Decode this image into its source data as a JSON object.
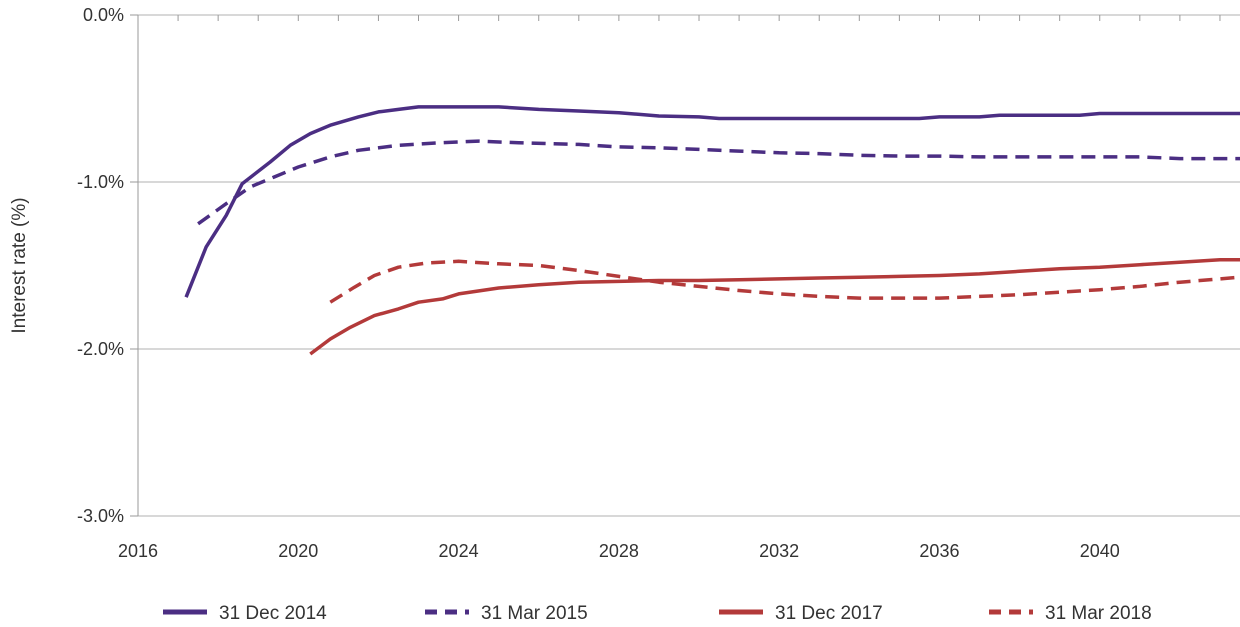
{
  "chart_data": {
    "type": "line",
    "title": "",
    "xlabel": "",
    "ylabel": "Interest rate (%)",
    "xlim": [
      2016,
      2043.5
    ],
    "ylim": [
      -3.0,
      0.0
    ],
    "x_ticks": [
      2016,
      2020,
      2024,
      2028,
      2032,
      2036,
      2040
    ],
    "x_tick_labels": [
      "2016",
      "2020",
      "2024",
      "2028",
      "2032",
      "2036",
      "2040"
    ],
    "y_ticks": [
      0.0,
      -1.0,
      -2.0,
      -3.0
    ],
    "y_tick_labels": [
      "0.0%",
      "-1.0%",
      "-2.0%",
      "-3.0%"
    ],
    "grid": "horizontal",
    "legend_position": "bottom",
    "series": [
      {
        "name": "31 Dec 2014",
        "color": "#4b2e83",
        "dash": "solid",
        "points": [
          [
            2017.2,
            -1.69
          ],
          [
            2017.7,
            -1.39
          ],
          [
            2018.2,
            -1.2
          ],
          [
            2018.6,
            -1.01
          ],
          [
            2019.3,
            -0.88
          ],
          [
            2019.8,
            -0.78
          ],
          [
            2020.3,
            -0.71
          ],
          [
            2020.8,
            -0.66
          ],
          [
            2021.5,
            -0.61
          ],
          [
            2022.0,
            -0.58
          ],
          [
            2022.5,
            -0.565
          ],
          [
            2023.0,
            -0.55
          ],
          [
            2024.0,
            -0.55
          ],
          [
            2025.0,
            -0.55
          ],
          [
            2026.0,
            -0.565
          ],
          [
            2027.0,
            -0.575
          ],
          [
            2028.0,
            -0.585
          ],
          [
            2029.0,
            -0.605
          ],
          [
            2030.0,
            -0.61
          ],
          [
            2030.5,
            -0.62
          ],
          [
            2032.0,
            -0.62
          ],
          [
            2034.0,
            -0.62
          ],
          [
            2035.5,
            -0.62
          ],
          [
            2036.0,
            -0.61
          ],
          [
            2037.0,
            -0.61
          ],
          [
            2037.5,
            -0.6
          ],
          [
            2039.5,
            -0.6
          ],
          [
            2040.0,
            -0.59
          ],
          [
            2043.5,
            -0.59
          ]
        ]
      },
      {
        "name": "31 Mar 2015",
        "color": "#4b2e83",
        "dash": "dashed",
        "points": [
          [
            2017.5,
            -1.25
          ],
          [
            2018.2,
            -1.13
          ],
          [
            2018.8,
            -1.03
          ],
          [
            2019.4,
            -0.97
          ],
          [
            2020.0,
            -0.91
          ],
          [
            2020.8,
            -0.85
          ],
          [
            2021.5,
            -0.81
          ],
          [
            2022.5,
            -0.78
          ],
          [
            2023.5,
            -0.765
          ],
          [
            2024.5,
            -0.755
          ],
          [
            2025.5,
            -0.765
          ],
          [
            2027.0,
            -0.775
          ],
          [
            2028.0,
            -0.79
          ],
          [
            2029.0,
            -0.795
          ],
          [
            2030.0,
            -0.805
          ],
          [
            2031.0,
            -0.815
          ],
          [
            2032.0,
            -0.825
          ],
          [
            2033.0,
            -0.83
          ],
          [
            2034.0,
            -0.84
          ],
          [
            2035.0,
            -0.845
          ],
          [
            2036.0,
            -0.845
          ],
          [
            2037.0,
            -0.85
          ],
          [
            2038.0,
            -0.85
          ],
          [
            2040.0,
            -0.85
          ],
          [
            2041.0,
            -0.85
          ],
          [
            2042.0,
            -0.86
          ],
          [
            2043.5,
            -0.86
          ]
        ]
      },
      {
        "name": "31 Dec 2017",
        "color": "#b33a3a",
        "dash": "solid",
        "points": [
          [
            2020.3,
            -2.03
          ],
          [
            2020.8,
            -1.94
          ],
          [
            2021.3,
            -1.87
          ],
          [
            2021.9,
            -1.8
          ],
          [
            2022.5,
            -1.76
          ],
          [
            2023.0,
            -1.72
          ],
          [
            2023.6,
            -1.7
          ],
          [
            2024.0,
            -1.67
          ],
          [
            2025.0,
            -1.635
          ],
          [
            2026.0,
            -1.615
          ],
          [
            2027.0,
            -1.6
          ],
          [
            2028.0,
            -1.595
          ],
          [
            2029.0,
            -1.59
          ],
          [
            2030.0,
            -1.59
          ],
          [
            2031.0,
            -1.585
          ],
          [
            2032.0,
            -1.58
          ],
          [
            2033.0,
            -1.575
          ],
          [
            2034.0,
            -1.57
          ],
          [
            2035.0,
            -1.565
          ],
          [
            2036.0,
            -1.56
          ],
          [
            2037.0,
            -1.55
          ],
          [
            2038.0,
            -1.535
          ],
          [
            2039.0,
            -1.52
          ],
          [
            2040.0,
            -1.51
          ],
          [
            2041.0,
            -1.495
          ],
          [
            2042.0,
            -1.48
          ],
          [
            2043.0,
            -1.465
          ],
          [
            2043.5,
            -1.465
          ]
        ]
      },
      {
        "name": "31 Mar 2018",
        "color": "#b33a3a",
        "dash": "dashed",
        "points": [
          [
            2020.8,
            -1.72
          ],
          [
            2021.4,
            -1.63
          ],
          [
            2021.9,
            -1.56
          ],
          [
            2022.5,
            -1.51
          ],
          [
            2023.2,
            -1.485
          ],
          [
            2024.0,
            -1.475
          ],
          [
            2025.0,
            -1.49
          ],
          [
            2026.0,
            -1.5
          ],
          [
            2027.0,
            -1.53
          ],
          [
            2028.0,
            -1.565
          ],
          [
            2029.0,
            -1.6
          ],
          [
            2030.0,
            -1.625
          ],
          [
            2031.0,
            -1.65
          ],
          [
            2032.0,
            -1.67
          ],
          [
            2033.0,
            -1.685
          ],
          [
            2034.0,
            -1.695
          ],
          [
            2035.0,
            -1.695
          ],
          [
            2036.0,
            -1.695
          ],
          [
            2037.0,
            -1.685
          ],
          [
            2038.0,
            -1.675
          ],
          [
            2039.0,
            -1.66
          ],
          [
            2040.0,
            -1.645
          ],
          [
            2041.0,
            -1.625
          ],
          [
            2042.0,
            -1.6
          ],
          [
            2043.0,
            -1.58
          ],
          [
            2043.5,
            -1.57
          ]
        ]
      }
    ]
  }
}
